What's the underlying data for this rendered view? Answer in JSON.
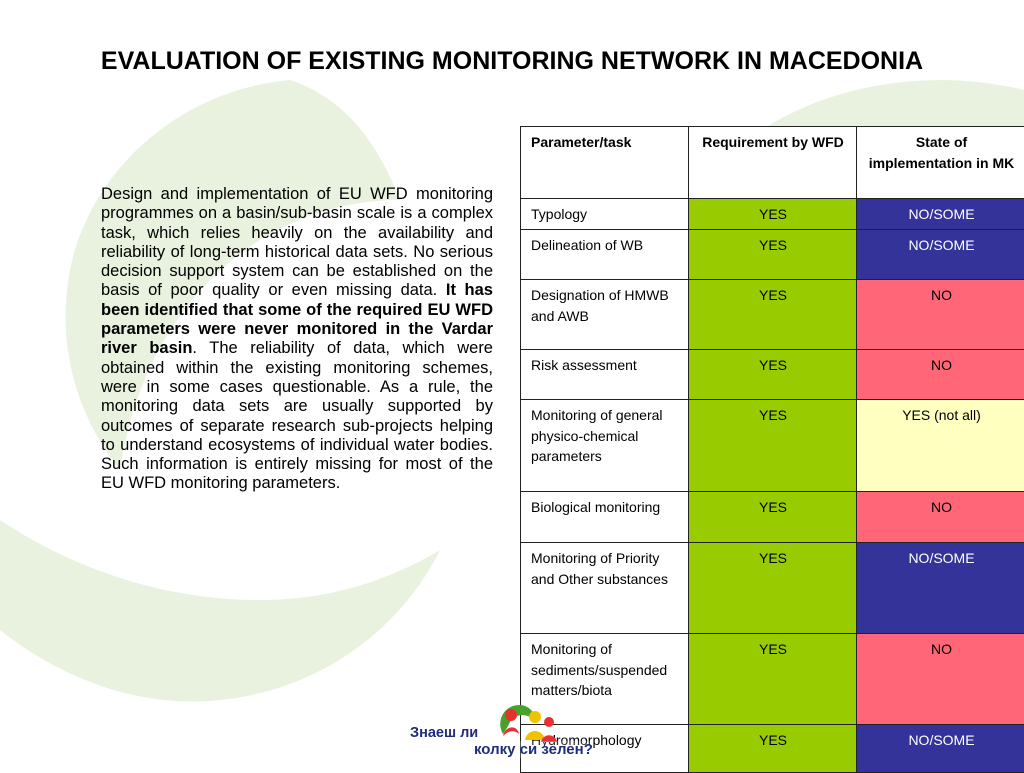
{
  "slide": {
    "title": "EVALUATION OF EXISTING MONITORING NETWORK IN MACEDONIA",
    "paragraph": {
      "intro": "Design and implementation of EU WFD monitoring programmes on a basin/sub-basin scale is a complex task, which relies heavily on the availability and reliability of long-term historical data sets. No serious decision support system can be established on the basis of poor quality or even missing data. ",
      "emphasis": "It has been identified that some of the required EU WFD parameters were never monitored in the Vardar river basin",
      "rest": ". The reliability of data, which were obtained within the existing monitoring schemes, were in some cases questionable. As a rule, the monitoring data sets are usually supported by outcomes of separate research sub-projects helping to understand ecosystems of individual water bodies. Such information is entirely missing for most of the EU WFD monitoring parameters."
    }
  },
  "colors": {
    "green": "#99cc00",
    "blue": "#333399",
    "pink": "#ff6677",
    "pale_yellow": "#ffffc0"
  },
  "table": {
    "headers": [
      "Parameter/task",
      "Requirement by WFD",
      "State of implementation in MK"
    ],
    "rows": [
      {
        "param": "Typology",
        "req": "YES",
        "state": "NO/SOME",
        "state_color": "blue"
      },
      {
        "param": "Delineation of WB",
        "req": "YES",
        "state": "NO/SOME",
        "state_color": "blue"
      },
      {
        "param": "Designation of HMWB and AWB",
        "req": "YES",
        "state": "NO",
        "state_color": "pink"
      },
      {
        "param": "Risk assessment",
        "req": "YES",
        "state": "NO",
        "state_color": "pink"
      },
      {
        "param": "Monitoring of general physico-chemical parameters",
        "req": "YES",
        "state": "YES (not all)",
        "state_color": "pale_yellow"
      },
      {
        "param": "Biological monitoring",
        "req": "YES",
        "state": "NO",
        "state_color": "pink"
      },
      {
        "param": "Monitoring of Priority and Other substances",
        "req": "YES",
        "state": "NO/SOME",
        "state_color": "blue"
      },
      {
        "param": "Monitoring of sediments/suspended matters/biota",
        "req": "YES",
        "state": "NO",
        "state_color": "pink"
      },
      {
        "param": "Hydromorphology",
        "req": "YES",
        "state": "NO/SOME",
        "state_color": "blue"
      }
    ]
  },
  "logo": {
    "line1": "Знаеш ли",
    "line2": "колку си зелен?"
  }
}
